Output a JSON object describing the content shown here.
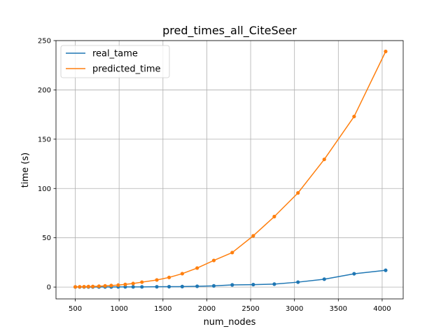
{
  "chart_data": {
    "type": "line",
    "title": "pred_times_all_CiteSeer",
    "xlabel": "num_nodes",
    "ylabel": "time (s)",
    "xlim": [
      280,
      4240
    ],
    "ylim": [
      -12,
      250
    ],
    "xticks": [
      500,
      1000,
      1500,
      2000,
      2500,
      3000,
      3500,
      4000
    ],
    "yticks": [
      0,
      50,
      100,
      150,
      200,
      250
    ],
    "grid": true,
    "legend_position": "top-left",
    "markers": true,
    "series": [
      {
        "name": "real_tame",
        "color": "#1f77b4",
        "x": [
          500,
          550,
          600,
          650,
          700,
          770,
          840,
          910,
          990,
          1070,
          1160,
          1260,
          1430,
          1570,
          1720,
          1890,
          2080,
          2290,
          2530,
          2770,
          3040,
          3340,
          3680,
          4040
        ],
        "y": [
          0.1,
          0.1,
          0.1,
          0.1,
          0.1,
          0.1,
          0.1,
          0.1,
          0.2,
          0.2,
          0.2,
          0.2,
          0.3,
          0.4,
          0.5,
          0.8,
          1.2,
          2.2,
          2.5,
          3.0,
          5.0,
          8.0,
          13.5,
          17.0
        ]
      },
      {
        "name": "predicted_time",
        "color": "#ff7f0e",
        "x": [
          500,
          550,
          600,
          650,
          700,
          770,
          840,
          910,
          990,
          1070,
          1160,
          1260,
          1430,
          1570,
          1720,
          1890,
          2080,
          2290,
          2530,
          2770,
          3040,
          3340,
          3680,
          4040
        ],
        "y": [
          0.2,
          0.3,
          0.4,
          0.5,
          0.6,
          0.9,
          1.2,
          1.6,
          2.0,
          2.7,
          3.6,
          5.0,
          7.2,
          9.8,
          13.6,
          19.3,
          27.0,
          35.0,
          52.0,
          71.5,
          95.5,
          129.5,
          173.0,
          239.0
        ]
      }
    ]
  }
}
